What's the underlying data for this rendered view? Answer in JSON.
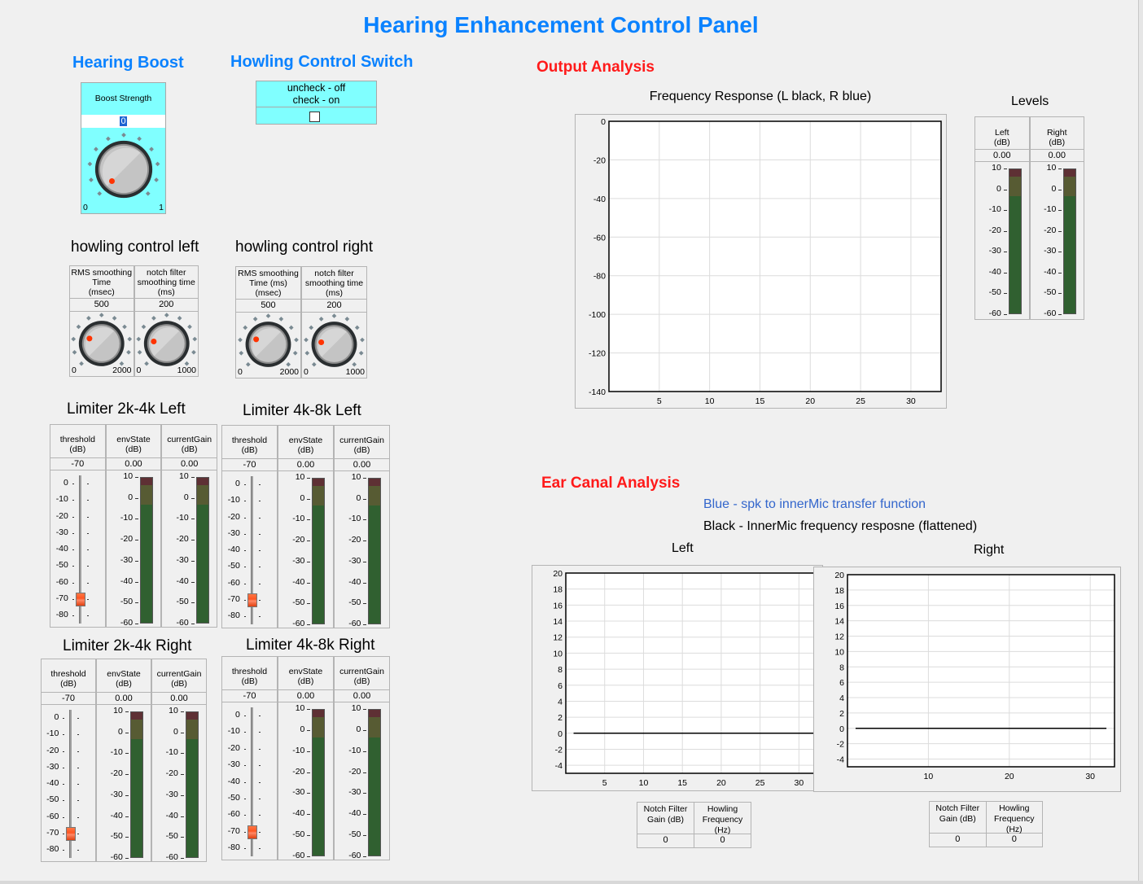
{
  "title": "Hearing Enhancement Control Panel",
  "colors": {
    "title": "#0a82ff",
    "section_red": "#ff1a1a",
    "panel_cyan": "#80ffff",
    "knob_indicator": "#ff3300",
    "meter_red": "#5e3034",
    "meter_yellow": "#575b33",
    "meter_green": "#306030",
    "slider_thumb": "#ff5522",
    "legend_blue": "#3366cc"
  },
  "hearing_boost": {
    "title": "Hearing Boost",
    "label": "Boost Strength",
    "value": "0",
    "min": "0",
    "max": "1",
    "fraction": 0
  },
  "howling_switch": {
    "title": "Howling Control Switch",
    "label": "uncheck - off\ncheck - on",
    "checked": false
  },
  "howling_left": {
    "title": "howling control left",
    "controls": [
      {
        "label": "RMS smoothing\nTime\n(msec)",
        "value": "500",
        "min": "0",
        "max": "2000",
        "fraction": 0.25
      },
      {
        "label": "notch filter\nsmoothing time\n(ms)",
        "value": "200",
        "min": "0",
        "max": "1000",
        "fraction": 0.2
      }
    ]
  },
  "howling_right": {
    "title": "howling control right",
    "controls": [
      {
        "label": "RMS smoothing\nTime (ms)\n(msec)",
        "value": "500",
        "min": "0",
        "max": "2000",
        "fraction": 0.25
      },
      {
        "label": "notch filter\nsmoothing time\n(ms)",
        "value": "200",
        "min": "0",
        "max": "1000",
        "fraction": 0.2
      }
    ]
  },
  "meter_scale": [
    "10",
    "0",
    "-10",
    "-20",
    "-30",
    "-40",
    "-50",
    "-60"
  ],
  "slider_scale": [
    "0",
    "-10",
    "-20",
    "-30",
    "-40",
    "-50",
    "-60",
    "-70",
    "-80"
  ],
  "limiters": [
    {
      "title": "Limiter 2k-4k Left",
      "threshold": {
        "label": "threshold\n(dB)",
        "value": "-70",
        "level": -70
      },
      "env": {
        "label": "envState\n(dB)",
        "value": "0.00"
      },
      "gain": {
        "label": "currentGain\n(dB)",
        "value": "0.00"
      }
    },
    {
      "title": "Limiter 4k-8k Left",
      "threshold": {
        "label": "threshold\n(dB)",
        "value": "-70",
        "level": -70
      },
      "env": {
        "label": "envState\n(dB)",
        "value": "0.00"
      },
      "gain": {
        "label": "currentGain\n(dB)",
        "value": "0.00"
      }
    },
    {
      "title": "Limiter 2k-4k Right",
      "threshold": {
        "label": "threshold\n(dB)",
        "value": "-70",
        "level": -70
      },
      "env": {
        "label": "envState\n(dB)",
        "value": "0.00"
      },
      "gain": {
        "label": "currentGain\n(dB)",
        "value": "0.00"
      }
    },
    {
      "title": "Limiter 4k-8k Right",
      "threshold": {
        "label": "threshold\n(dB)",
        "value": "-70",
        "level": -70
      },
      "env": {
        "label": "envState\n(dB)",
        "value": "0.00"
      },
      "gain": {
        "label": "currentGain\n(dB)",
        "value": "0.00"
      }
    }
  ],
  "output_analysis": {
    "title": "Output Analysis",
    "levels_title": "Levels",
    "levels": [
      {
        "label": "Left\n(dB)",
        "value": "0.00"
      },
      {
        "label": "Right\n(dB)",
        "value": "0.00"
      }
    ]
  },
  "ear_canal": {
    "title": "Ear Canal Analysis",
    "legend_blue": "Blue - spk to innerMic transfer function",
    "legend_black": "Black - InnerMic frequency resposne (flattened)",
    "left_table": {
      "headers": [
        "Notch Filter\nGain (dB)",
        "Howling\nFrequency\n(Hz)"
      ],
      "values": [
        "0",
        "0"
      ]
    },
    "right_table": {
      "headers": [
        "Notch Filter\nGain (dB)",
        "Howling\nFrequency\n(Hz)"
      ],
      "values": [
        "0",
        "0"
      ]
    }
  },
  "chart_data": [
    {
      "type": "line",
      "title": "Frequency Response (L black, R blue)",
      "xlim": [
        0,
        33
      ],
      "ylim": [
        -140,
        0
      ],
      "xticks": [
        "5",
        "10",
        "15",
        "20",
        "25",
        "30"
      ],
      "yticks": [
        "0",
        "-20",
        "-40",
        "-60",
        "-80",
        "-100",
        "-120",
        "-140"
      ],
      "grid": true,
      "series": []
    },
    {
      "type": "line",
      "title": "Left",
      "xlim": [
        0,
        33
      ],
      "ylim": [
        -5,
        20
      ],
      "xticks": [
        "5",
        "10",
        "15",
        "20",
        "25",
        "30"
      ],
      "yticks": [
        "20",
        "18",
        "16",
        "14",
        "12",
        "10",
        "8",
        "6",
        "4",
        "2",
        "0",
        "-2",
        "-4"
      ],
      "grid": true,
      "series": [
        {
          "color": "#000000",
          "x": [
            1,
            32
          ],
          "y": [
            0,
            0
          ]
        }
      ]
    },
    {
      "type": "line",
      "title": "Right",
      "xlim": [
        0,
        33
      ],
      "ylim": [
        -5,
        20
      ],
      "xticks": [
        "10",
        "20",
        "30"
      ],
      "yticks": [
        "20",
        "18",
        "16",
        "14",
        "12",
        "10",
        "8",
        "6",
        "4",
        "2",
        "0",
        "-2",
        "-4"
      ],
      "grid": true,
      "series": [
        {
          "color": "#000000",
          "x": [
            1,
            32
          ],
          "y": [
            0,
            0
          ]
        }
      ]
    }
  ]
}
